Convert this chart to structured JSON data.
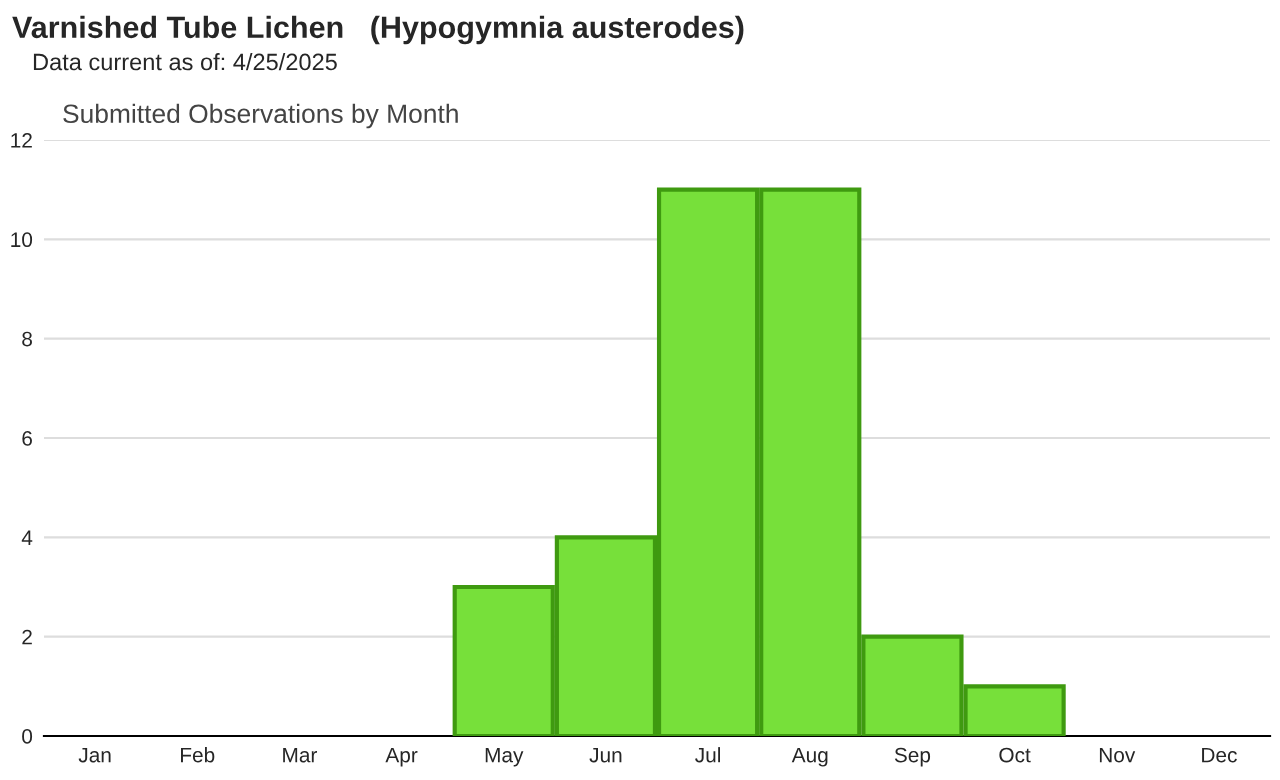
{
  "chart_data": {
    "type": "bar",
    "title": "Varnished Tube Lichen   (Hypogymnia austerodes)",
    "subtitle": "Data current as of: 4/25/2025",
    "annotations": [
      "Submitted Observations by Month"
    ],
    "categories": [
      "Jan",
      "Feb",
      "Mar",
      "Apr",
      "May",
      "Jun",
      "Jul",
      "Aug",
      "Sep",
      "Oct",
      "Nov",
      "Dec"
    ],
    "values": [
      0,
      0,
      0,
      0,
      3,
      4,
      11,
      11,
      2,
      1,
      0,
      0
    ],
    "color": "#77e03a",
    "ylim": [
      0,
      12
    ],
    "yticks": [
      0,
      2,
      4,
      6,
      8,
      10,
      12
    ],
    "grid": "y"
  }
}
